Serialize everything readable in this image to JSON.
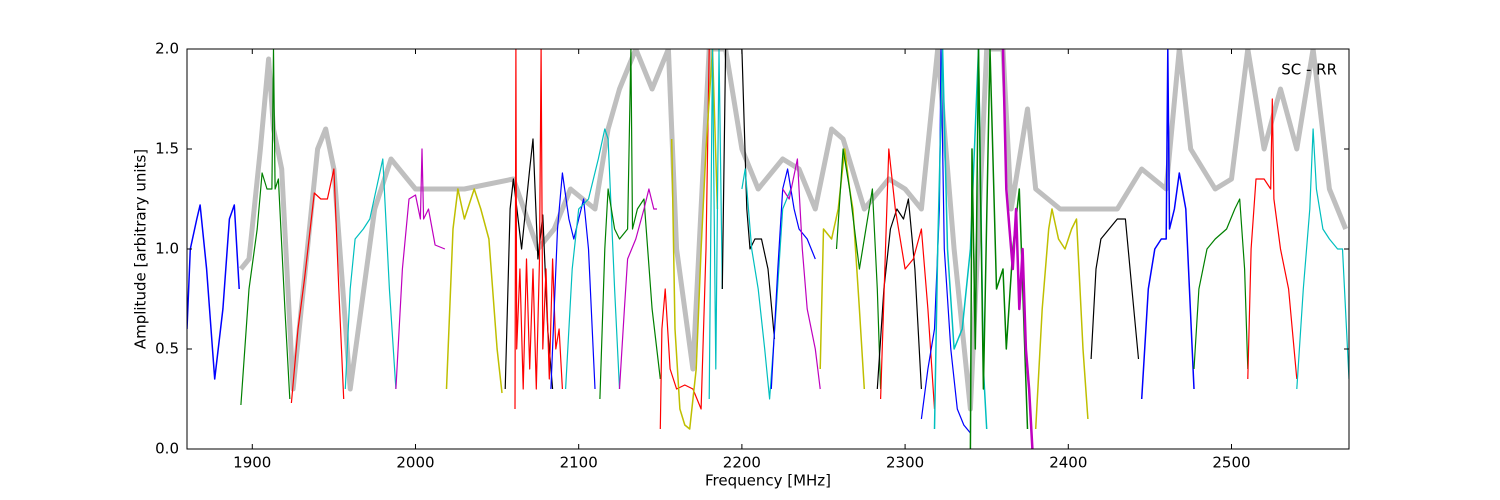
{
  "chart_data": {
    "type": "line",
    "annotation": "SC - RR",
    "x_label": "Frequency [MHz]",
    "y_label": "Amplitude [arbitrary units]",
    "xlim": [
      1860,
      2572
    ],
    "ylim": [
      0,
      2
    ],
    "xticks": [
      1900,
      2000,
      2100,
      2200,
      2300,
      2400,
      2500
    ],
    "yticks": [
      {
        "value": 0,
        "label": "0.0"
      },
      0.5,
      {
        "value": 1,
        "label": "1.0"
      },
      1.5,
      {
        "value": 2,
        "label": "2.0"
      }
    ],
    "series": [
      {
        "color": "#bfbfbf",
        "width": 5,
        "x": [
          1893,
          1898,
          1905,
          1910,
          1913,
          1918,
          1925,
          1940,
          1945,
          1950,
          1960,
          1975,
          1985,
          2000,
          2030,
          2060,
          2075,
          2085,
          2095,
          2110,
          2118,
          2125,
          2135,
          2145,
          2155,
          2160,
          2170,
          2180,
          2190,
          2200,
          2210,
          2225,
          2235,
          2245,
          2255,
          2262,
          2275,
          2290,
          2300,
          2310,
          2320,
          2330,
          2340,
          2350,
          2360,
          2365,
          2375,
          2380,
          2395,
          2415,
          2430,
          2445,
          2460,
          2468,
          2475,
          2490,
          2500,
          2510,
          2520,
          2530,
          2540,
          2550,
          2560,
          2570
        ],
        "values": [
          0.9,
          0.95,
          1.5,
          1.95,
          1.6,
          1.4,
          0.3,
          1.5,
          1.6,
          1.4,
          0.3,
          1.2,
          1.45,
          1.3,
          1.3,
          1.35,
          1.0,
          1.1,
          1.3,
          1.2,
          1.6,
          1.8,
          2.0,
          1.8,
          2.0,
          1.0,
          0.4,
          2.0,
          2.0,
          1.5,
          1.3,
          1.45,
          1.4,
          1.2,
          1.6,
          1.55,
          1.2,
          1.35,
          1.3,
          1.2,
          2.0,
          1.0,
          0.2,
          2.0,
          2.0,
          1.2,
          1.7,
          1.3,
          1.2,
          1.2,
          1.2,
          1.4,
          1.3,
          2.0,
          1.5,
          1.3,
          1.35,
          2.0,
          1.5,
          1.8,
          1.5,
          2.0,
          1.3,
          1.1
        ]
      },
      {
        "color": "#0000ff",
        "width": 1.5,
        "x": [
          1860,
          1862,
          1866,
          1868,
          1872,
          1877,
          1882,
          1886,
          1889,
          1892
        ],
        "values": [
          0.6,
          1.0,
          1.15,
          1.22,
          0.9,
          0.35,
          0.7,
          1.15,
          1.22,
          0.8
        ]
      },
      {
        "color": "#008000",
        "width": 1.2,
        "x": [
          1893,
          1898,
          1903,
          1906,
          1909,
          1912,
          1913,
          1914,
          1916,
          1920,
          1923
        ],
        "values": [
          0.22,
          0.8,
          1.1,
          1.38,
          1.3,
          1.3,
          2.0,
          1.3,
          1.35,
          0.7,
          0.25
        ]
      },
      {
        "color": "#ff0000",
        "width": 1.2,
        "x": [
          1924,
          1928,
          1932,
          1938,
          1942,
          1946,
          1950,
          1953,
          1956
        ],
        "values": [
          0.23,
          0.6,
          0.85,
          1.28,
          1.25,
          1.25,
          1.4,
          0.8,
          0.25
        ]
      },
      {
        "color": "#00bfbf",
        "width": 1.2,
        "x": [
          1957,
          1960,
          1963,
          1968,
          1972,
          1976,
          1980,
          1984,
          1988
        ],
        "values": [
          0.3,
          0.8,
          1.05,
          1.1,
          1.15,
          1.3,
          1.45,
          0.8,
          0.3
        ]
      },
      {
        "color": "#bf00bf",
        "width": 1.2,
        "x": [
          1988,
          1992,
          1996,
          2000,
          2003,
          2004,
          2005,
          2008,
          2012,
          2018
        ],
        "values": [
          0.3,
          0.9,
          1.25,
          1.27,
          1.15,
          1.5,
          1.15,
          1.2,
          1.02,
          1.0
        ]
      },
      {
        "color": "#bfbf00",
        "width": 1.5,
        "x": [
          2019,
          2023,
          2026,
          2030,
          2036,
          2040,
          2045,
          2050,
          2053
        ],
        "values": [
          0.3,
          1.1,
          1.3,
          1.15,
          1.3,
          1.2,
          1.05,
          0.5,
          0.28
        ]
      },
      {
        "color": "#000000",
        "width": 1.2,
        "x": [
          2055,
          2058,
          2060,
          2065,
          2070,
          2072,
          2075,
          2078,
          2081,
          2084
        ],
        "values": [
          0.3,
          1.2,
          1.35,
          1.0,
          1.4,
          1.55,
          0.95,
          1.17,
          0.6,
          0.3
        ]
      },
      {
        "color": "#ff0000",
        "width": 1.2,
        "x": [
          2061,
          2061.5,
          2062,
          2064,
          2066,
          2068,
          2070,
          2072,
          2074,
          2076,
          2077,
          2078,
          2080,
          2082,
          2084,
          2086,
          2088,
          2090
        ],
        "values": [
          0.2,
          2.0,
          0.5,
          0.9,
          0.3,
          0.95,
          0.4,
          0.9,
          0.3,
          0.95,
          2.0,
          0.5,
          0.9,
          0.35,
          0.95,
          0.5,
          0.6,
          0.3
        ]
      },
      {
        "color": "#0000ff",
        "width": 1.2,
        "x": [
          2083,
          2087,
          2090,
          2094,
          2097,
          2100,
          2103,
          2106,
          2110
        ],
        "values": [
          0.3,
          1.1,
          1.38,
          1.15,
          1.05,
          1.15,
          1.25,
          1.0,
          0.3
        ]
      },
      {
        "color": "#00bfbf",
        "width": 1.2,
        "x": [
          2092,
          2096,
          2100,
          2106,
          2112,
          2116,
          2118,
          2122,
          2125
        ],
        "values": [
          0.3,
          0.9,
          1.2,
          1.25,
          1.45,
          1.6,
          1.55,
          0.8,
          0.3
        ]
      },
      {
        "color": "#008000",
        "width": 1.2,
        "x": [
          2113,
          2116,
          2118,
          2122,
          2125,
          2130,
          2132,
          2133,
          2136,
          2140,
          2145,
          2150
        ],
        "values": [
          0.25,
          1.0,
          1.3,
          1.1,
          1.05,
          1.1,
          2.0,
          1.1,
          1.2,
          1.25,
          0.7,
          0.35
        ]
      },
      {
        "color": "#bf00bf",
        "width": 1.2,
        "x": [
          2125,
          2128,
          2130,
          2135,
          2140,
          2143,
          2146,
          2148
        ],
        "values": [
          0.3,
          0.7,
          0.95,
          1.05,
          1.2,
          1.3,
          1.2,
          1.2
        ]
      },
      {
        "color": "#ff0000",
        "width": 1.2,
        "x": [
          2150,
          2151,
          2153,
          2156,
          2160,
          2165,
          2170,
          2175,
          2178,
          2180
        ],
        "values": [
          0.1,
          0.6,
          0.8,
          0.4,
          0.3,
          0.32,
          0.3,
          0.2,
          1.0,
          2.0
        ]
      },
      {
        "color": "#bfbf00",
        "width": 1.5,
        "x": [
          2157,
          2159,
          2162,
          2165,
          2168,
          2172,
          2175,
          2178,
          2182,
          2185
        ],
        "values": [
          1.55,
          0.6,
          0.2,
          0.12,
          0.1,
          0.4,
          1.0,
          1.5,
          2.0,
          1.2
        ]
      },
      {
        "color": "#00bfbf",
        "width": 1.2,
        "x": [
          2180,
          2182,
          2184,
          2186,
          2188
        ],
        "values": [
          0.25,
          2.0,
          0.4,
          2.0,
          0.8
        ]
      },
      {
        "color": "#000000",
        "width": 1.2,
        "x": [
          2188,
          2190,
          2200,
          2203,
          2205,
          2208,
          2212,
          2216,
          2220
        ],
        "values": [
          0.8,
          2.0,
          2.0,
          1.2,
          1.0,
          1.05,
          1.05,
          0.9,
          0.55
        ]
      },
      {
        "color": "#00bfbf",
        "width": 1.2,
        "x": [
          2200,
          2202,
          2206,
          2210,
          2214,
          2217,
          2221,
          2225,
          2230
        ],
        "values": [
          1.3,
          1.4,
          1.0,
          0.8,
          0.5,
          0.25,
          0.7,
          1.2,
          1.3
        ]
      },
      {
        "color": "#0000ff",
        "width": 1.2,
        "x": [
          2218,
          2222,
          2225,
          2228,
          2232,
          2235,
          2240,
          2245
        ],
        "values": [
          0.3,
          0.9,
          1.3,
          1.4,
          1.2,
          1.1,
          1.05,
          0.95
        ]
      },
      {
        "color": "#bf00bf",
        "width": 1.2,
        "x": [
          2225,
          2229,
          2234,
          2237,
          2240,
          2245,
          2248
        ],
        "values": [
          1.3,
          1.25,
          1.45,
          1.0,
          0.7,
          0.5,
          0.3
        ]
      },
      {
        "color": "#bfbf00",
        "width": 1.5,
        "x": [
          2248,
          2250,
          2255,
          2259,
          2263,
          2266,
          2268,
          2272,
          2275
        ],
        "values": [
          0.4,
          1.1,
          1.05,
          1.2,
          1.5,
          1.3,
          1.2,
          0.7,
          0.3
        ]
      },
      {
        "color": "#008000",
        "width": 1.2,
        "x": [
          2258,
          2262,
          2266,
          2272,
          2276,
          2280,
          2283,
          2285
        ],
        "values": [
          1.0,
          1.5,
          1.3,
          0.9,
          1.1,
          1.3,
          0.8,
          0.3
        ]
      },
      {
        "color": "#000000",
        "width": 1.2,
        "x": [
          2283,
          2287,
          2291,
          2295,
          2299,
          2302,
          2306,
          2310
        ],
        "values": [
          0.3,
          0.8,
          1.1,
          1.2,
          1.15,
          1.25,
          0.9,
          0.3
        ]
      },
      {
        "color": "#ff0000",
        "width": 1.2,
        "x": [
          2285,
          2288,
          2290,
          2294,
          2300,
          2305,
          2310,
          2314,
          2318
        ],
        "values": [
          0.25,
          1.0,
          1.5,
          1.2,
          0.9,
          0.95,
          1.1,
          0.7,
          0.2
        ]
      },
      {
        "color": "#0000ff",
        "width": 1.2,
        "x": [
          2310,
          2314,
          2318,
          2321,
          2322,
          2324,
          2328,
          2332,
          2336,
          2340
        ],
        "values": [
          0.15,
          0.4,
          0.6,
          1.2,
          2.0,
          1.0,
          0.5,
          0.2,
          0.12,
          0.08
        ]
      },
      {
        "color": "#00bfbf",
        "width": 1.5,
        "x": [
          2318,
          2320,
          2323,
          2326,
          2330,
          2335,
          2340,
          2345,
          2348,
          2350
        ],
        "values": [
          0.1,
          1.0,
          2.0,
          1.0,
          0.5,
          0.6,
          1.0,
          2.0,
          0.4,
          0.1
        ]
      },
      {
        "color": "#008000",
        "width": 1.5,
        "x": [
          2340,
          2341,
          2343,
          2345,
          2348,
          2352,
          2356,
          2360,
          2362,
          2366,
          2370,
          2375
        ],
        "values": [
          0.0,
          1.5,
          0.5,
          2.0,
          0.3,
          2.0,
          0.8,
          0.9,
          0.5,
          1.0,
          1.3,
          0.1
        ]
      },
      {
        "color": "#bf00bf",
        "width": 2.5,
        "x": [
          2360,
          2362,
          2364,
          2366,
          2368,
          2370,
          2372,
          2374,
          2376,
          2378
        ],
        "values": [
          2.0,
          1.3,
          1.1,
          0.9,
          1.2,
          0.7,
          1.0,
          0.5,
          0.3,
          0.0
        ]
      },
      {
        "color": "#bfbf00",
        "width": 1.5,
        "x": [
          2380,
          2384,
          2388,
          2390,
          2394,
          2398,
          2402,
          2405,
          2409,
          2412
        ],
        "values": [
          0.1,
          0.7,
          1.1,
          1.2,
          1.05,
          1.0,
          1.1,
          1.15,
          0.5,
          0.15
        ]
      },
      {
        "color": "#000000",
        "width": 1.2,
        "x": [
          2414,
          2417,
          2420,
          2425,
          2430,
          2435,
          2439,
          2443
        ],
        "values": [
          0.45,
          0.9,
          1.05,
          1.1,
          1.15,
          1.15,
          0.8,
          0.45
        ]
      },
      {
        "color": "#0000ff",
        "width": 1.5,
        "x": [
          2445,
          2449,
          2453,
          2457,
          2460,
          2461,
          2462,
          2465,
          2468,
          2472,
          2477
        ],
        "values": [
          0.25,
          0.8,
          1.0,
          1.05,
          1.05,
          2.0,
          1.1,
          1.2,
          1.38,
          1.2,
          0.3
        ]
      },
      {
        "color": "#008000",
        "width": 1.2,
        "x": [
          2477,
          2480,
          2485,
          2490,
          2497,
          2502,
          2505,
          2508,
          2510
        ],
        "values": [
          0.4,
          0.8,
          1.0,
          1.05,
          1.1,
          1.2,
          1.25,
          0.9,
          0.4
        ]
      },
      {
        "color": "#ff0000",
        "width": 1.2,
        "x": [
          2510,
          2512,
          2515,
          2520,
          2524,
          2525,
          2526,
          2530,
          2535,
          2540
        ],
        "values": [
          0.35,
          1.0,
          1.35,
          1.35,
          1.3,
          1.75,
          1.25,
          1.0,
          0.8,
          0.35
        ]
      },
      {
        "color": "#00bfbf",
        "width": 1.2,
        "x": [
          2540,
          2544,
          2548,
          2550,
          2552,
          2556,
          2560,
          2565,
          2568,
          2572
        ],
        "values": [
          0.3,
          0.8,
          1.2,
          1.6,
          1.3,
          1.1,
          1.05,
          1.0,
          1.0,
          0.35
        ]
      }
    ]
  }
}
